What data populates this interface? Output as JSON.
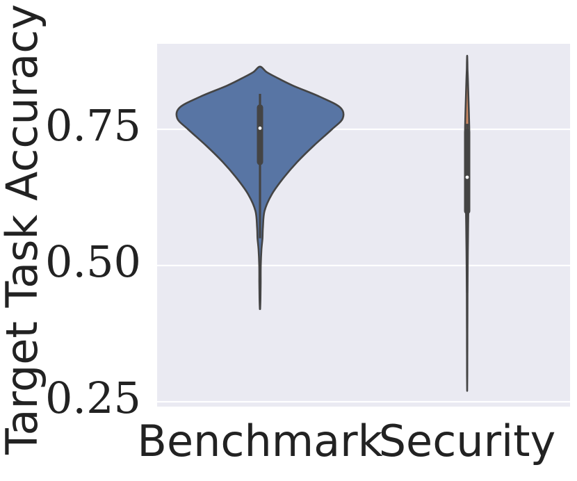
{
  "chart_data": {
    "type": "violin",
    "xlabel": "",
    "ylabel": "Target Task Accuracy",
    "categories": [
      "Benchmark",
      "Security"
    ],
    "yticks": [
      0.25,
      0.5,
      0.75
    ],
    "ytick_labels": [
      "0.25",
      "0.50",
      "0.75"
    ],
    "ylim": [
      0.24,
      0.9
    ],
    "grid": true,
    "background_color": "#eaeaf2",
    "series": [
      {
        "category": "Benchmark",
        "color": "#5875a4",
        "min": 0.42,
        "max": 0.865,
        "whisker_low": 0.55,
        "whisker_high": 0.815,
        "q1": 0.69,
        "q3": 0.79,
        "median": 0.752,
        "density": [
          [
            0.42,
            0.002
          ],
          [
            0.44,
            0.006
          ],
          [
            0.47,
            0.008
          ],
          [
            0.5,
            0.009
          ],
          [
            0.53,
            0.018
          ],
          [
            0.55,
            0.03
          ],
          [
            0.57,
            0.035
          ],
          [
            0.6,
            0.055
          ],
          [
            0.63,
            0.14
          ],
          [
            0.66,
            0.28
          ],
          [
            0.69,
            0.45
          ],
          [
            0.72,
            0.65
          ],
          [
            0.75,
            0.87
          ],
          [
            0.77,
            1.0
          ],
          [
            0.79,
            0.97
          ],
          [
            0.81,
            0.72
          ],
          [
            0.83,
            0.4
          ],
          [
            0.845,
            0.2
          ],
          [
            0.855,
            0.08
          ],
          [
            0.865,
            0.0
          ]
        ]
      },
      {
        "category": "Security",
        "color": "#cc8963",
        "min": 0.27,
        "max": 0.885,
        "whisker_low": 0.45,
        "whisker_high": 0.76,
        "q1": 0.6,
        "q3": 0.745,
        "median": 0.662,
        "density": [
          [
            0.27,
            0.0
          ],
          [
            0.3,
            0.01
          ],
          [
            0.35,
            0.015
          ],
          [
            0.4,
            0.02
          ],
          [
            0.45,
            0.03
          ],
          [
            0.5,
            0.045
          ],
          [
            0.55,
            0.065
          ],
          [
            0.6,
            0.095
          ],
          [
            0.65,
            0.13
          ],
          [
            0.7,
            0.16
          ],
          [
            0.74,
            0.175
          ],
          [
            0.78,
            0.14
          ],
          [
            0.81,
            0.1
          ],
          [
            0.84,
            0.06
          ],
          [
            0.86,
            0.03
          ],
          [
            0.875,
            0.015
          ],
          [
            0.885,
            0.0
          ]
        ]
      }
    ]
  }
}
